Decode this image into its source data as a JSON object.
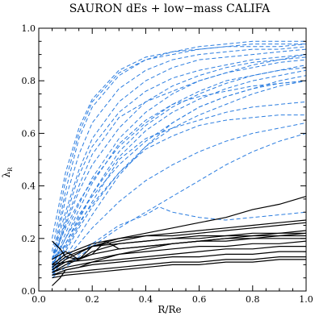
{
  "chart_data": {
    "type": "line",
    "title": "SAURON dEs + low−mass CALIFA",
    "xlabel": "R/Re",
    "ylabel": "λ",
    "ylabel_subscript": "R",
    "xlim": [
      0.0,
      1.0
    ],
    "ylim": [
      0.0,
      1.0
    ],
    "x_ticks": [
      "0.0",
      "0.2",
      "0.4",
      "0.6",
      "0.8",
      "1.0"
    ],
    "y_ticks": [
      "0.0",
      "0.2",
      "0.4",
      "0.6",
      "0.8",
      "1.0"
    ],
    "grid": false,
    "colors": {
      "califa": "#2b7de0",
      "sauron": "#000000"
    },
    "series": [
      {
        "group": "califa",
        "style": "dashed",
        "x": [
          0.05,
          0.1,
          0.15,
          0.2,
          0.3,
          0.4,
          0.5,
          0.6,
          0.7,
          0.8,
          0.9,
          1.0
        ],
        "y": [
          0.12,
          0.38,
          0.58,
          0.7,
          0.82,
          0.88,
          0.91,
          0.93,
          0.94,
          0.95,
          0.95,
          0.95
        ]
      },
      {
        "group": "califa",
        "style": "dashed",
        "x": [
          0.05,
          0.1,
          0.15,
          0.2,
          0.3,
          0.4,
          0.5,
          0.6,
          0.7,
          0.8,
          0.9,
          1.0
        ],
        "y": [
          0.15,
          0.42,
          0.6,
          0.72,
          0.83,
          0.88,
          0.9,
          0.92,
          0.93,
          0.94,
          0.94,
          0.94
        ]
      },
      {
        "group": "califa",
        "style": "dashed",
        "x": [
          0.05,
          0.1,
          0.15,
          0.2,
          0.3,
          0.4,
          0.5,
          0.6,
          0.7,
          0.8,
          0.9,
          1.0
        ],
        "y": [
          0.2,
          0.45,
          0.62,
          0.73,
          0.84,
          0.89,
          0.91,
          0.92,
          0.93,
          0.93,
          0.93,
          0.94
        ]
      },
      {
        "group": "califa",
        "style": "dashed",
        "x": [
          0.05,
          0.1,
          0.15,
          0.2,
          0.3,
          0.4,
          0.5,
          0.6,
          0.7,
          0.8,
          0.9,
          1.0
        ],
        "y": [
          0.1,
          0.35,
          0.52,
          0.64,
          0.77,
          0.84,
          0.88,
          0.9,
          0.91,
          0.92,
          0.92,
          0.93
        ]
      },
      {
        "group": "califa",
        "style": "dashed",
        "x": [
          0.05,
          0.1,
          0.15,
          0.2,
          0.3,
          0.4,
          0.5,
          0.6,
          0.7,
          0.8,
          0.9,
          1.0
        ],
        "y": [
          0.12,
          0.3,
          0.46,
          0.58,
          0.72,
          0.8,
          0.85,
          0.88,
          0.89,
          0.9,
          0.91,
          0.92
        ]
      },
      {
        "group": "califa",
        "style": "dashed",
        "x": [
          0.05,
          0.1,
          0.15,
          0.2,
          0.3,
          0.4,
          0.5,
          0.6,
          0.7,
          0.8,
          0.9,
          1.0
        ],
        "y": [
          0.08,
          0.28,
          0.44,
          0.55,
          0.68,
          0.76,
          0.81,
          0.84,
          0.86,
          0.88,
          0.89,
          0.9
        ]
      },
      {
        "group": "califa",
        "style": "dashed",
        "x": [
          0.05,
          0.1,
          0.15,
          0.2,
          0.3,
          0.4,
          0.5,
          0.6,
          0.7,
          0.8,
          0.9,
          1.0
        ],
        "y": [
          0.1,
          0.25,
          0.38,
          0.48,
          0.62,
          0.72,
          0.78,
          0.82,
          0.85,
          0.87,
          0.88,
          0.89
        ]
      },
      {
        "group": "califa",
        "style": "dashed",
        "x": [
          0.05,
          0.1,
          0.15,
          0.2,
          0.3,
          0.4,
          0.5,
          0.6,
          0.7,
          0.8,
          0.9,
          1.0
        ],
        "y": [
          0.09,
          0.22,
          0.33,
          0.43,
          0.58,
          0.68,
          0.75,
          0.8,
          0.83,
          0.85,
          0.87,
          0.88
        ]
      },
      {
        "group": "califa",
        "style": "dashed",
        "x": [
          0.05,
          0.1,
          0.15,
          0.2,
          0.3,
          0.4,
          0.5,
          0.6,
          0.7,
          0.8,
          0.9,
          1.0
        ],
        "y": [
          0.12,
          0.24,
          0.34,
          0.42,
          0.55,
          0.64,
          0.71,
          0.76,
          0.8,
          0.82,
          0.84,
          0.85
        ]
      },
      {
        "group": "califa",
        "style": "dashed",
        "x": [
          0.05,
          0.1,
          0.15,
          0.2,
          0.3,
          0.4,
          0.5,
          0.6,
          0.7,
          0.8,
          0.9,
          1.0
        ],
        "y": [
          0.07,
          0.18,
          0.28,
          0.37,
          0.51,
          0.61,
          0.68,
          0.73,
          0.77,
          0.8,
          0.82,
          0.84
        ]
      },
      {
        "group": "califa",
        "style": "dashed",
        "x": [
          0.05,
          0.1,
          0.15,
          0.2,
          0.3,
          0.4,
          0.5,
          0.6,
          0.7,
          0.8,
          0.9,
          1.0
        ],
        "y": [
          0.1,
          0.2,
          0.29,
          0.36,
          0.48,
          0.57,
          0.64,
          0.7,
          0.74,
          0.77,
          0.8,
          0.82
        ]
      },
      {
        "group": "califa",
        "style": "dashed",
        "x": [
          0.05,
          0.1,
          0.15,
          0.2,
          0.3,
          0.4,
          0.5,
          0.6,
          0.7,
          0.8,
          0.9,
          1.0
        ],
        "y": [
          0.08,
          0.17,
          0.26,
          0.33,
          0.45,
          0.55,
          0.62,
          0.67,
          0.71,
          0.75,
          0.78,
          0.8
        ]
      },
      {
        "group": "califa",
        "style": "dashed",
        "x": [
          0.05,
          0.1,
          0.15,
          0.2,
          0.3,
          0.4,
          0.5,
          0.6,
          0.7,
          0.8,
          0.9,
          1.0
        ],
        "y": [
          0.12,
          0.26,
          0.4,
          0.52,
          0.66,
          0.72,
          0.76,
          0.8,
          0.83,
          0.86,
          0.88,
          0.9
        ]
      },
      {
        "group": "califa",
        "style": "dashed",
        "x": [
          0.05,
          0.1,
          0.15,
          0.2,
          0.3,
          0.4,
          0.5,
          0.6,
          0.7,
          0.8,
          0.9,
          1.0
        ],
        "y": [
          0.09,
          0.2,
          0.31,
          0.41,
          0.56,
          0.65,
          0.71,
          0.74,
          0.76,
          0.78,
          0.79,
          0.8
        ]
      },
      {
        "group": "califa",
        "style": "dashed",
        "x": [
          0.05,
          0.1,
          0.15,
          0.2,
          0.3,
          0.4,
          0.5,
          0.6,
          0.7,
          0.8,
          0.9,
          1.0
        ],
        "y": [
          0.07,
          0.15,
          0.24,
          0.32,
          0.45,
          0.54,
          0.59,
          0.63,
          0.65,
          0.66,
          0.67,
          0.67
        ]
      },
      {
        "group": "califa",
        "style": "dashed",
        "x": [
          0.05,
          0.1,
          0.15,
          0.2,
          0.3,
          0.4,
          0.5,
          0.6,
          0.7,
          0.8,
          0.9,
          1.0
        ],
        "y": [
          0.08,
          0.16,
          0.25,
          0.34,
          0.5,
          0.58,
          0.62,
          0.65,
          0.68,
          0.7,
          0.71,
          0.72
        ]
      },
      {
        "group": "califa",
        "style": "dashed",
        "x": [
          0.05,
          0.1,
          0.15,
          0.2,
          0.3,
          0.4,
          0.5,
          0.6,
          0.7,
          0.8,
          0.9,
          1.0
        ],
        "y": [
          0.06,
          0.13,
          0.21,
          0.29,
          0.44,
          0.55,
          0.64,
          0.7,
          0.74,
          0.77,
          0.79,
          0.8
        ]
      },
      {
        "group": "califa",
        "style": "dashed",
        "x": [
          0.05,
          0.1,
          0.15,
          0.2,
          0.3,
          0.4,
          0.5,
          0.6,
          0.7,
          0.8,
          0.9,
          1.0
        ],
        "y": [
          0.1,
          0.18,
          0.27,
          0.37,
          0.53,
          0.63,
          0.7,
          0.75,
          0.79,
          0.82,
          0.84,
          0.86
        ]
      },
      {
        "group": "califa",
        "style": "dashed",
        "x": [
          0.05,
          0.1,
          0.15,
          0.2,
          0.3,
          0.4,
          0.5,
          0.6,
          0.7,
          0.8,
          0.9,
          1.0
        ],
        "y": [
          0.07,
          0.12,
          0.18,
          0.24,
          0.34,
          0.42,
          0.48,
          0.53,
          0.57,
          0.6,
          0.62,
          0.64
        ]
      },
      {
        "group": "califa",
        "style": "dashed",
        "x": [
          0.05,
          0.1,
          0.15,
          0.2,
          0.3,
          0.4,
          0.5,
          0.6,
          0.7,
          0.8,
          0.9,
          1.0
        ],
        "y": [
          0.05,
          0.09,
          0.13,
          0.17,
          0.24,
          0.3,
          0.36,
          0.42,
          0.48,
          0.53,
          0.57,
          0.6
        ]
      },
      {
        "group": "califa",
        "style": "dashed",
        "x": [
          0.05,
          0.1,
          0.15,
          0.2,
          0.3,
          0.4,
          0.45,
          0.5,
          0.6,
          0.7,
          0.8,
          0.9,
          1.0
        ],
        "y": [
          0.06,
          0.1,
          0.14,
          0.18,
          0.25,
          0.29,
          0.32,
          0.3,
          0.28,
          0.27,
          0.28,
          0.29,
          0.3
        ]
      },
      {
        "group": "sauron",
        "style": "solid",
        "x": [
          0.05,
          0.1,
          0.2,
          0.3,
          0.4,
          0.5,
          0.6,
          0.7,
          0.8,
          0.9,
          1.0
        ],
        "y": [
          0.08,
          0.12,
          0.17,
          0.2,
          0.22,
          0.24,
          0.26,
          0.28,
          0.31,
          0.33,
          0.36
        ]
      },
      {
        "group": "sauron",
        "style": "solid",
        "x": [
          0.05,
          0.1,
          0.2,
          0.3,
          0.4,
          0.5,
          0.6,
          0.7,
          0.8,
          0.9,
          1.0
        ],
        "y": [
          0.09,
          0.13,
          0.17,
          0.19,
          0.21,
          0.22,
          0.23,
          0.24,
          0.25,
          0.26,
          0.27
        ]
      },
      {
        "group": "sauron",
        "style": "solid",
        "x": [
          0.05,
          0.1,
          0.2,
          0.3,
          0.4,
          0.5,
          0.6,
          0.7,
          0.8,
          0.9,
          1.0
        ],
        "y": [
          0.1,
          0.14,
          0.18,
          0.2,
          0.21,
          0.21,
          0.22,
          0.23,
          0.24,
          0.25,
          0.26
        ]
      },
      {
        "group": "sauron",
        "style": "solid",
        "x": [
          0.05,
          0.08,
          0.1,
          0.15,
          0.2,
          0.3,
          0.4,
          0.5,
          0.6,
          0.7,
          0.8,
          0.9,
          1.0
        ],
        "y": [
          0.19,
          0.16,
          0.13,
          0.12,
          0.15,
          0.18,
          0.19,
          0.2,
          0.21,
          0.21,
          0.22,
          0.22,
          0.23
        ]
      },
      {
        "group": "sauron",
        "style": "solid",
        "x": [
          0.05,
          0.1,
          0.15,
          0.2,
          0.3,
          0.4,
          0.5,
          0.6,
          0.7,
          0.8,
          0.9,
          1.0
        ],
        "y": [
          0.12,
          0.15,
          0.12,
          0.17,
          0.18,
          0.19,
          0.2,
          0.2,
          0.21,
          0.21,
          0.22,
          0.22
        ]
      },
      {
        "group": "sauron",
        "style": "solid",
        "x": [
          0.05,
          0.1,
          0.2,
          0.25,
          0.3,
          0.4,
          0.5,
          0.6,
          0.7,
          0.8,
          0.9,
          1.0
        ],
        "y": [
          0.07,
          0.1,
          0.14,
          0.19,
          0.16,
          0.17,
          0.18,
          0.19,
          0.2,
          0.2,
          0.21,
          0.21
        ]
      },
      {
        "group": "sauron",
        "style": "solid",
        "x": [
          0.05,
          0.1,
          0.2,
          0.3,
          0.4,
          0.5,
          0.6,
          0.7,
          0.8,
          0.9,
          1.0
        ],
        "y": [
          0.08,
          0.11,
          0.14,
          0.16,
          0.17,
          0.18,
          0.19,
          0.19,
          0.2,
          0.2,
          0.2
        ]
      },
      {
        "group": "sauron",
        "style": "solid",
        "x": [
          0.05,
          0.1,
          0.2,
          0.3,
          0.4,
          0.5,
          0.6,
          0.7,
          0.8,
          0.9,
          1.0
        ],
        "y": [
          0.1,
          0.11,
          0.12,
          0.14,
          0.15,
          0.16,
          0.17,
          0.17,
          0.18,
          0.18,
          0.19
        ]
      },
      {
        "group": "sauron",
        "style": "solid",
        "x": [
          0.05,
          0.1,
          0.2,
          0.3,
          0.4,
          0.5,
          0.6,
          0.7,
          0.8,
          0.9,
          1.0
        ],
        "y": [
          0.07,
          0.09,
          0.11,
          0.12,
          0.13,
          0.14,
          0.15,
          0.16,
          0.16,
          0.17,
          0.17
        ]
      },
      {
        "group": "sauron",
        "style": "solid",
        "x": [
          0.05,
          0.1,
          0.2,
          0.3,
          0.4,
          0.5,
          0.6,
          0.7,
          0.8,
          0.9,
          1.0
        ],
        "y": [
          0.06,
          0.08,
          0.1,
          0.11,
          0.12,
          0.13,
          0.13,
          0.14,
          0.14,
          0.15,
          0.15
        ]
      },
      {
        "group": "sauron",
        "style": "solid",
        "x": [
          0.05,
          0.1,
          0.2,
          0.3,
          0.4,
          0.5,
          0.6,
          0.7,
          0.8,
          0.9,
          1.0
        ],
        "y": [
          0.06,
          0.07,
          0.08,
          0.09,
          0.1,
          0.11,
          0.11,
          0.12,
          0.12,
          0.13,
          0.13
        ]
      },
      {
        "group": "sauron",
        "style": "solid",
        "x": [
          0.05,
          0.1,
          0.2,
          0.3,
          0.4,
          0.5,
          0.6,
          0.7,
          0.8,
          0.9,
          1.0
        ],
        "y": [
          0.05,
          0.06,
          0.07,
          0.08,
          0.09,
          0.1,
          0.1,
          0.11,
          0.11,
          0.12,
          0.12
        ]
      },
      {
        "group": "sauron",
        "style": "solid",
        "x": [
          0.05,
          0.08,
          0.1,
          0.15,
          0.2,
          0.3,
          0.4,
          0.5,
          0.6,
          0.7,
          0.8,
          0.9,
          1.0
        ],
        "y": [
          0.02,
          0.05,
          0.08,
          0.09,
          0.11,
          0.14,
          0.16,
          0.18,
          0.19,
          0.2,
          0.21,
          0.21,
          0.22
        ]
      }
    ]
  }
}
